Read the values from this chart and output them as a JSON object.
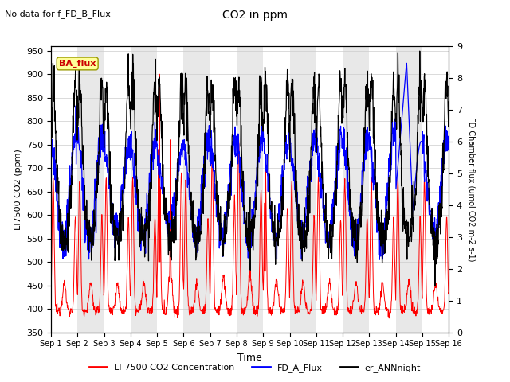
{
  "title": "CO2 in ppm",
  "subtitle": "No data for f_FD_B_Flux",
  "ylabel_left": "LI7500 CO2 (ppm)",
  "ylabel_right": "FD Chamber flux (umol CO2 m-2 s-1)",
  "xlabel": "Time",
  "ylim_left": [
    350,
    960
  ],
  "ylim_right": [
    0.0,
    9.0
  ],
  "yticks_left": [
    350,
    400,
    450,
    500,
    550,
    600,
    650,
    700,
    750,
    800,
    850,
    900,
    950
  ],
  "yticks_right": [
    0.0,
    1.0,
    2.0,
    3.0,
    4.0,
    5.0,
    6.0,
    7.0,
    8.0,
    9.0
  ],
  "xtick_labels": [
    "Sep 1",
    "Sep 2",
    "Sep 3",
    "Sep 4",
    "Sep 5",
    "Sep 6",
    "Sep 7",
    "Sep 8",
    "Sep 9",
    "Sep 10",
    "Sep 11",
    "Sep 12",
    "Sep 13",
    "Sep 14",
    "Sep 15",
    "Sep 16"
  ],
  "color_red": "#ff0000",
  "color_blue": "#0000ff",
  "color_black": "#000000",
  "ba_flux_color": "#cc0000",
  "ba_flux_bg": "#ffff99",
  "legend_labels": [
    "LI-7500 CO2 Concentration",
    "FD_A_Flux",
    "er_ANNnight"
  ],
  "n_days": 15,
  "pts_per_day": 96,
  "background_strip_color": "#e8e8e8"
}
